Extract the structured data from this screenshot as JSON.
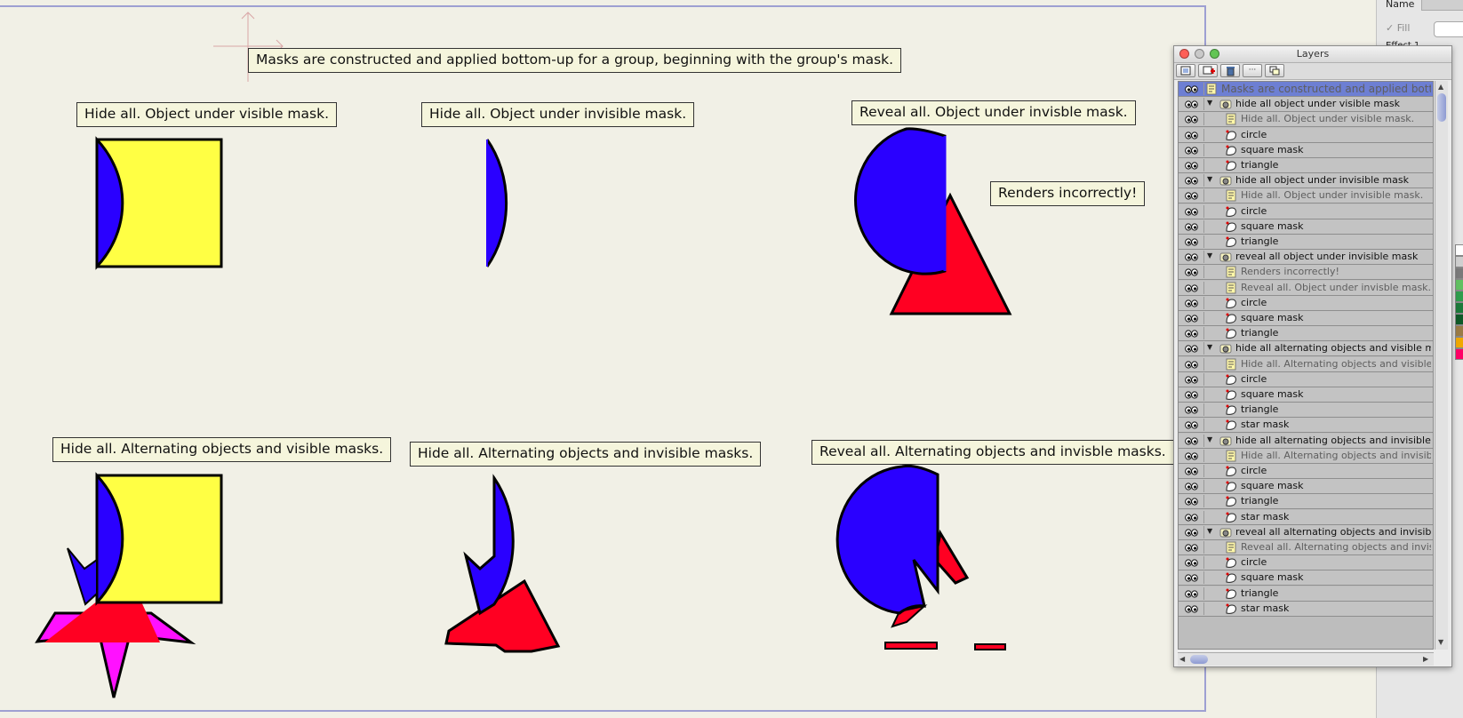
{
  "canvas": {
    "notes": {
      "header": "Masks are constructed and applied bottom-up for a group, beginning with the group's mask.",
      "hide_visible": "Hide all. Object under visible mask.",
      "hide_invisible": "Hide all. Object under invisible mask.",
      "reveal_invisible": "Reveal all. Object under invisble mask.",
      "renders_incorrectly": "Renders incorrectly!",
      "hide_alt_visible": "Hide all. Alternating objects and visible masks.",
      "hide_alt_invisible": "Hide all. Alternating objects and invisible masks.",
      "reveal_alt_invisible": "Reveal all. Alternating objects and invisble masks."
    },
    "colors": {
      "circle": "#2a00ff",
      "square_mask": "#ffff44",
      "triangle": "#ff0022",
      "star_mask": "#ff11ff",
      "background": "#f1f0e6",
      "page_border": "#9ea0d2"
    }
  },
  "inspector": {
    "name_label": "Name",
    "fill_label": "Fill",
    "effect_label": "Effect 1",
    "swatches": [
      "#ffffff",
      "#cfcfcf",
      "#7a7a7a",
      "#61c061",
      "#2f9d4d",
      "#1c7a3a",
      "#0f5a28",
      "#9a7b46",
      "#f0a800",
      "#ff0066"
    ]
  },
  "layers_panel": {
    "title": "Layers",
    "toolbar": [
      "new-layer",
      "new-group",
      "delete",
      "more",
      "duplicate"
    ],
    "rows": [
      {
        "label": "Masks are constructed and applied bott",
        "kind": "note",
        "indent": 0,
        "selected": true
      },
      {
        "label": "hide all object under visible mask",
        "kind": "group",
        "indent": 0,
        "expanded": true
      },
      {
        "label": "Hide all. Object under visible mask.",
        "kind": "note",
        "indent": 1
      },
      {
        "label": "circle",
        "kind": "shape",
        "indent": 1
      },
      {
        "label": "square mask",
        "kind": "shape",
        "indent": 1
      },
      {
        "label": "triangle",
        "kind": "shape",
        "indent": 1
      },
      {
        "label": "hide all object under invisible mask",
        "kind": "group",
        "indent": 0,
        "expanded": true
      },
      {
        "label": "Hide all. Object under invisible mask.",
        "kind": "note",
        "indent": 1
      },
      {
        "label": "circle",
        "kind": "shape",
        "indent": 1
      },
      {
        "label": "square mask",
        "kind": "shape",
        "indent": 1
      },
      {
        "label": "triangle",
        "kind": "shape",
        "indent": 1
      },
      {
        "label": "reveal all object under invisible mask",
        "kind": "group",
        "indent": 0,
        "expanded": true
      },
      {
        "label": "Renders incorrectly!",
        "kind": "note",
        "indent": 1
      },
      {
        "label": "Reveal all. Object under invisble mask.",
        "kind": "note",
        "indent": 1
      },
      {
        "label": "circle",
        "kind": "shape",
        "indent": 1
      },
      {
        "label": "square mask",
        "kind": "shape",
        "indent": 1
      },
      {
        "label": "triangle",
        "kind": "shape",
        "indent": 1
      },
      {
        "label": "hide all alternating objects and visible masks",
        "kind": "group",
        "indent": 0,
        "expanded": true
      },
      {
        "label": "Hide all. Alternating objects and visible masks.",
        "kind": "note",
        "indent": 1
      },
      {
        "label": "circle",
        "kind": "shape",
        "indent": 1
      },
      {
        "label": "square mask",
        "kind": "shape",
        "indent": 1
      },
      {
        "label": "triangle",
        "kind": "shape",
        "indent": 1
      },
      {
        "label": "star mask",
        "kind": "shape",
        "indent": 1
      },
      {
        "label": "hide all alternating objects and invisible masks",
        "kind": "group",
        "indent": 0,
        "expanded": true
      },
      {
        "label": "Hide all. Alternating objects and invisible masks.",
        "kind": "note",
        "indent": 1
      },
      {
        "label": "circle",
        "kind": "shape",
        "indent": 1
      },
      {
        "label": "square mask",
        "kind": "shape",
        "indent": 1
      },
      {
        "label": "triangle",
        "kind": "shape",
        "indent": 1
      },
      {
        "label": "star mask",
        "kind": "shape",
        "indent": 1
      },
      {
        "label": "reveal all alternating objects and invisible masks",
        "kind": "group",
        "indent": 0,
        "expanded": true
      },
      {
        "label": "Reveal all. Alternating objects and invisible m",
        "kind": "note",
        "indent": 1
      },
      {
        "label": "circle",
        "kind": "shape",
        "indent": 1
      },
      {
        "label": "square mask",
        "kind": "shape",
        "indent": 1
      },
      {
        "label": "triangle",
        "kind": "shape",
        "indent": 1
      },
      {
        "label": "star mask",
        "kind": "shape",
        "indent": 1
      }
    ]
  }
}
